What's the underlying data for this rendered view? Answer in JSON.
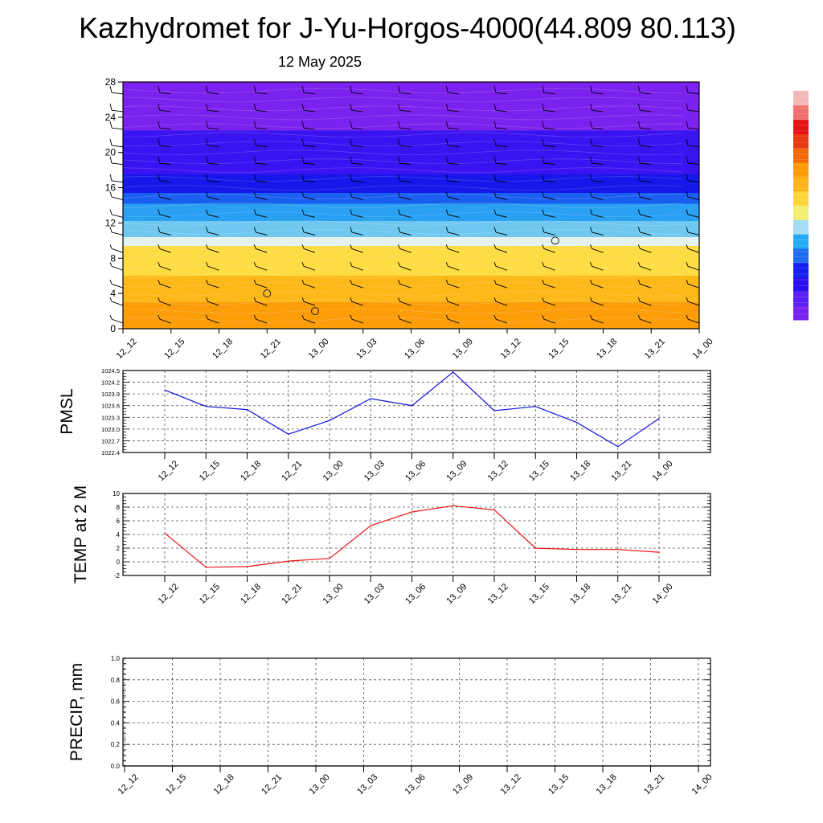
{
  "title": "Kazhydromet for J-Yu-Horgos-4000(44.809 80.113)",
  "subtitle": "12 May 2025",
  "colors": {
    "pmsl_line": "#1010dd",
    "temp_line": "#ee1111",
    "precip_line": "#2e8b2e",
    "grid": "#555555",
    "barb": "#000000"
  },
  "chart_data": [
    {
      "type": "heatmap",
      "panel": "cross-section",
      "x_ticks": [
        "12_12",
        "12_15",
        "12_18",
        "12_21",
        "13_00",
        "13_03",
        "13_06",
        "13_09",
        "13_12",
        "13_15",
        "13_18",
        "13_21",
        "14_00"
      ],
      "y_ticks": [
        "0",
        "4",
        "8",
        "12",
        "16",
        "20",
        "24",
        "28"
      ],
      "ylim": [
        0,
        28
      ],
      "colorbar": {
        "colors": [
          "#7a22ee",
          "#5a1ff2",
          "#2a10ee",
          "#1420f0",
          "#1e6cf0",
          "#26aaf5",
          "#a4dcf5",
          "#f2ee70",
          "#fdd43a",
          "#fdb418",
          "#fd9a08",
          "#f26a08",
          "#e83a10",
          "#e41414",
          "#f07070",
          "#f4b8b8"
        ]
      },
      "field_bands": [
        {
          "from": 0,
          "to": 3,
          "color": "#fb9e0a"
        },
        {
          "from": 3,
          "to": 6,
          "color": "#fdb81a"
        },
        {
          "from": 6,
          "to": 9.4,
          "color": "#fddc44"
        },
        {
          "from": 9.4,
          "to": 10.4,
          "color": "#e4f2f2"
        },
        {
          "from": 10.4,
          "to": 12.2,
          "color": "#70c8f0"
        },
        {
          "from": 12.2,
          "to": 14.2,
          "color": "#2aa0f2"
        },
        {
          "from": 14.2,
          "to": 15.4,
          "color": "#1a60f0"
        },
        {
          "from": 15.4,
          "to": 17.5,
          "color": "#1418e8"
        },
        {
          "from": 17.5,
          "to": 22.5,
          "color": "#3a14f0"
        },
        {
          "from": 22.5,
          "to": 28,
          "color": "#7c22ee"
        }
      ],
      "calm_markers": [
        {
          "x": "12_21",
          "y": 4
        },
        {
          "x": "13_00",
          "y": 2
        },
        {
          "x": "13_15",
          "y": 10
        }
      ]
    },
    {
      "type": "line",
      "panel": "pmsl",
      "ylabel": "PMSL",
      "categories": [
        "12_12",
        "12_15",
        "12_18",
        "12_21",
        "13_00",
        "13_03",
        "13_06",
        "13_09",
        "13_12",
        "13_15",
        "13_18",
        "13_21",
        "14_00"
      ],
      "series": [
        {
          "values": [
            1024.0,
            1023.58,
            1023.5,
            1022.87,
            1023.22,
            1023.78,
            1023.6,
            1024.46,
            1023.47,
            1023.58,
            1023.17,
            1022.55,
            1023.27
          ]
        }
      ],
      "y_ticks": [
        "1022.4",
        "1022.7",
        "1023.0",
        "1023.3",
        "1023.6",
        "1023.9",
        "1024.2",
        "1024.5"
      ],
      "ylim": [
        1022.4,
        1024.5
      ],
      "grid": true
    },
    {
      "type": "line",
      "panel": "temp",
      "ylabel": "TEMP at 2 M",
      "categories": [
        "12_12",
        "12_15",
        "12_18",
        "12_21",
        "13_00",
        "13_03",
        "13_06",
        "13_09",
        "13_12",
        "13_15",
        "13_18",
        "13_21",
        "14_00"
      ],
      "series": [
        {
          "values": [
            4.2,
            -0.8,
            -0.7,
            0.1,
            0.5,
            5.3,
            7.3,
            8.2,
            7.6,
            2.0,
            1.8,
            1.8,
            1.4
          ]
        }
      ],
      "y_ticks": [
        "-2",
        "0",
        "2",
        "4",
        "6",
        "8",
        "10"
      ],
      "ylim": [
        -2,
        10
      ],
      "grid": true
    },
    {
      "type": "line",
      "panel": "precip",
      "ylabel": "PRECIP, mm",
      "categories": [
        "12_12",
        "12_15",
        "12_18",
        "12_21",
        "13_00",
        "13_03",
        "13_06",
        "13_09",
        "13_12",
        "13_15",
        "13_18",
        "13_21",
        "14_00"
      ],
      "series": [
        {
          "values": [
            0,
            0,
            0,
            0,
            0,
            0,
            0,
            0,
            0,
            0,
            0,
            0,
            0
          ]
        }
      ],
      "y_ticks": [
        "0.0",
        "0.2",
        "0.4",
        "0.6",
        "0.8",
        "1.0"
      ],
      "ylim": [
        0,
        1
      ],
      "grid": true
    }
  ]
}
